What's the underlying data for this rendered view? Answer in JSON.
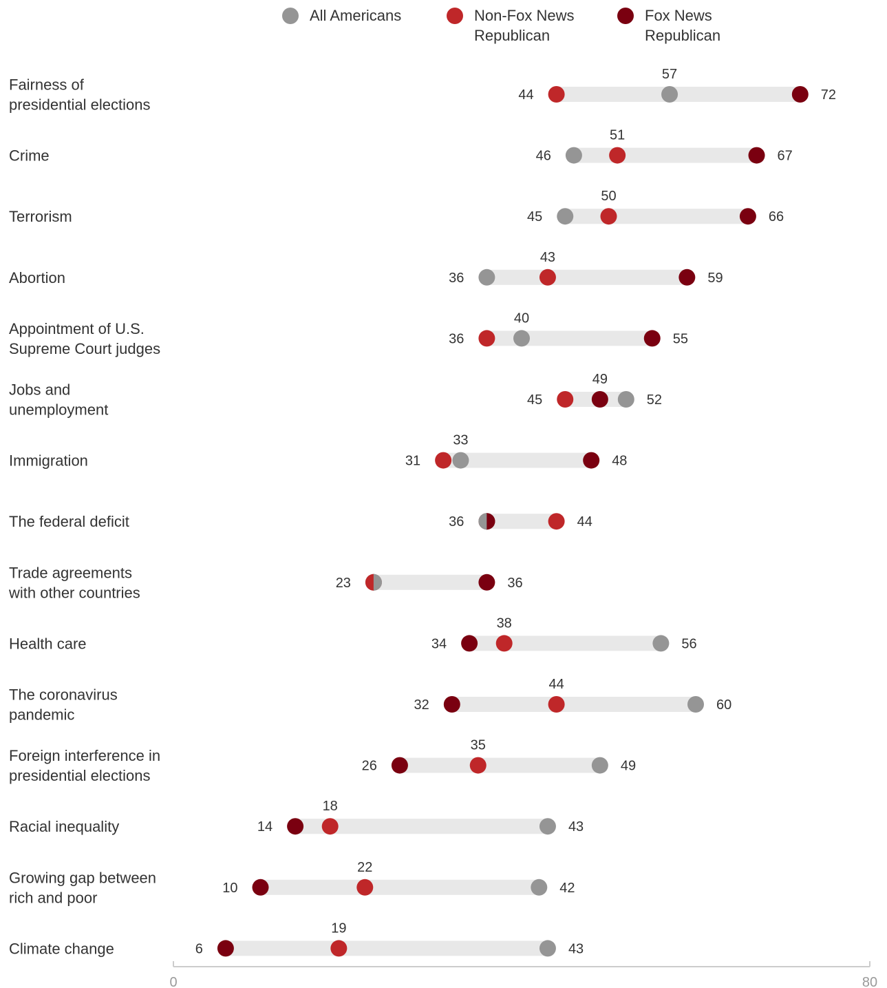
{
  "chart_data": {
    "type": "dot",
    "xlim": [
      0,
      80
    ],
    "x_ticks": [
      "0",
      "80"
    ],
    "legend_position": "top",
    "series": [
      {
        "key": "all",
        "name_lines": [
          "All Americans"
        ],
        "color": "#959595"
      },
      {
        "key": "nonfox",
        "name_lines": [
          "Non-Fox News",
          "Republican"
        ],
        "color": "#bf2729"
      },
      {
        "key": "fox",
        "name_lines": [
          "Fox News",
          "Republican"
        ],
        "color": "#7a0010"
      }
    ],
    "categories": [
      {
        "label_lines": [
          "Fairness of",
          "presidential elections"
        ],
        "all": 57,
        "nonfox": 44,
        "fox": 72
      },
      {
        "label_lines": [
          "Crime"
        ],
        "all": 46,
        "nonfox": 51,
        "fox": 67
      },
      {
        "label_lines": [
          "Terrorism"
        ],
        "all": 45,
        "nonfox": 50,
        "fox": 66
      },
      {
        "label_lines": [
          "Abortion"
        ],
        "all": 36,
        "nonfox": 43,
        "fox": 59
      },
      {
        "label_lines": [
          "Appointment of U.S.",
          "Supreme Court judges"
        ],
        "all": 40,
        "nonfox": 36,
        "fox": 55
      },
      {
        "label_lines": [
          "Jobs and",
          "unemployment"
        ],
        "all": 52,
        "nonfox": 45,
        "fox": 49
      },
      {
        "label_lines": [
          "Immigration"
        ],
        "all": 33,
        "nonfox": 31,
        "fox": 48
      },
      {
        "label_lines": [
          "The federal deficit"
        ],
        "all": 36,
        "nonfox": 44,
        "fox": 36
      },
      {
        "label_lines": [
          "Trade agreements",
          "with other countries"
        ],
        "all": 23,
        "nonfox": 23,
        "fox": 36
      },
      {
        "label_lines": [
          "Health care"
        ],
        "all": 56,
        "nonfox": 38,
        "fox": 34
      },
      {
        "label_lines": [
          "The coronavirus",
          "pandemic"
        ],
        "all": 60,
        "nonfox": 44,
        "fox": 32
      },
      {
        "label_lines": [
          "Foreign interference in",
          "presidential elections"
        ],
        "all": 49,
        "nonfox": 35,
        "fox": 26
      },
      {
        "label_lines": [
          "Racial inequality"
        ],
        "all": 43,
        "nonfox": 18,
        "fox": 14
      },
      {
        "label_lines": [
          "Growing gap between",
          "rich and poor"
        ],
        "all": 42,
        "nonfox": 22,
        "fox": 10
      },
      {
        "label_lines": [
          "Climate change"
        ],
        "all": 43,
        "nonfox": 19,
        "fox": 6
      }
    ]
  }
}
